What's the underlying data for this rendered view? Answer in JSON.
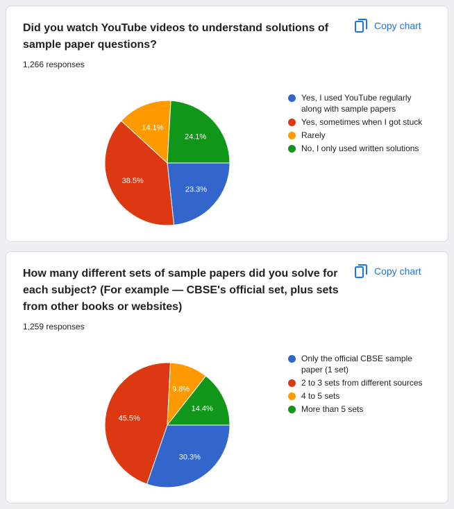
{
  "copy_label": "Copy chart",
  "chart_data": [
    {
      "type": "pie",
      "title": "Did you watch YouTube videos to understand solutions of sample paper questions?",
      "responses": "1,266 responses",
      "slices": [
        {
          "label": "Yes, I used YouTube regularly along with sample papers",
          "value": 23.3,
          "value_label": "23.3%",
          "color": "#3366cc"
        },
        {
          "label": "Yes, sometimes when I got stuck",
          "value": 38.5,
          "value_label": "38.5%",
          "color": "#dc3912"
        },
        {
          "label": "Rarely",
          "value": 14.1,
          "value_label": "14.1%",
          "color": "#ff9900"
        },
        {
          "label": "No, I only used written solutions",
          "value": 24.1,
          "value_label": "24.1%",
          "color": "#109618"
        }
      ]
    },
    {
      "type": "pie",
      "title": "How many different sets of sample papers did you solve for each subject? (For example — CBSE's official set, plus sets from other books or websites)",
      "responses": "1,259 responses",
      "slices": [
        {
          "label": "Only the official CBSE sample paper (1 set)",
          "value": 30.3,
          "value_label": "30.3%",
          "color": "#3366cc"
        },
        {
          "label": "2 to 3 sets from different sources",
          "value": 45.5,
          "value_label": "45.5%",
          "color": "#dc3912"
        },
        {
          "label": "4 to 5 sets",
          "value": 9.8,
          "value_label": "9.8%",
          "color": "#ff9900"
        },
        {
          "label": "More than 5 sets",
          "value": 14.4,
          "value_label": "14.4%",
          "color": "#109618"
        }
      ]
    }
  ]
}
